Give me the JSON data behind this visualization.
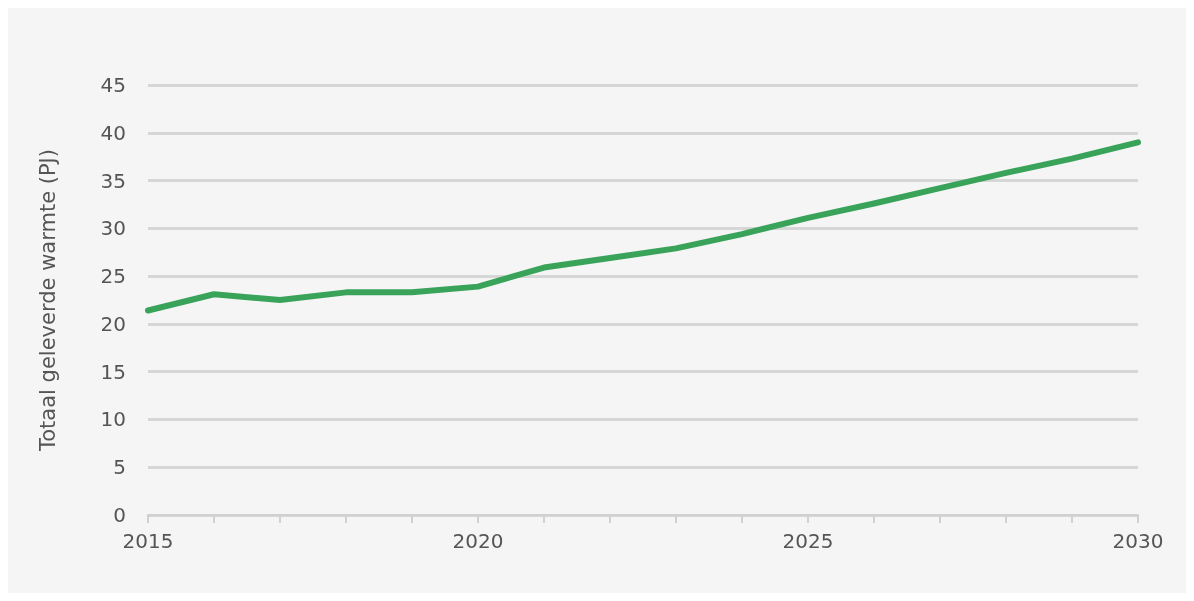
{
  "chart_data": {
    "type": "line",
    "ylabel": "Totaal geleverde warmte (PJ)",
    "x": [
      2015,
      2016,
      2017,
      2018,
      2019,
      2020,
      2021,
      2022,
      2023,
      2024,
      2025,
      2026,
      2027,
      2028,
      2029,
      2030
    ],
    "series": [
      {
        "color": "#3aa35a",
        "values": [
          21.4,
          23.1,
          22.5,
          23.3,
          23.3,
          23.9,
          25.9,
          26.9,
          27.9,
          29.4,
          31.1,
          32.6,
          34.2,
          35.8,
          37.3,
          39.0
        ]
      }
    ],
    "xlim": [
      2015,
      2030
    ],
    "xticks": [
      2015,
      {
        "value": 2016,
        "label": null
      },
      {
        "value": 2017,
        "label": null
      },
      {
        "value": 2018,
        "label": null
      },
      {
        "value": 2019,
        "label": null
      },
      2020,
      {
        "value": 2021,
        "label": null
      },
      {
        "value": 2022,
        "label": null
      },
      {
        "value": 2023,
        "label": null
      },
      {
        "value": 2024,
        "label": null
      },
      2025,
      {
        "value": 2026,
        "label": null
      },
      {
        "value": 2027,
        "label": null
      },
      {
        "value": 2028,
        "label": null
      },
      {
        "value": 2029,
        "label": null
      },
      2030
    ],
    "ylim": [
      0,
      45
    ],
    "yticks": [
      0,
      5,
      10,
      15,
      20,
      25,
      30,
      35,
      40,
      45
    ],
    "grid": "y",
    "marker": "none",
    "line_style": "solid"
  }
}
